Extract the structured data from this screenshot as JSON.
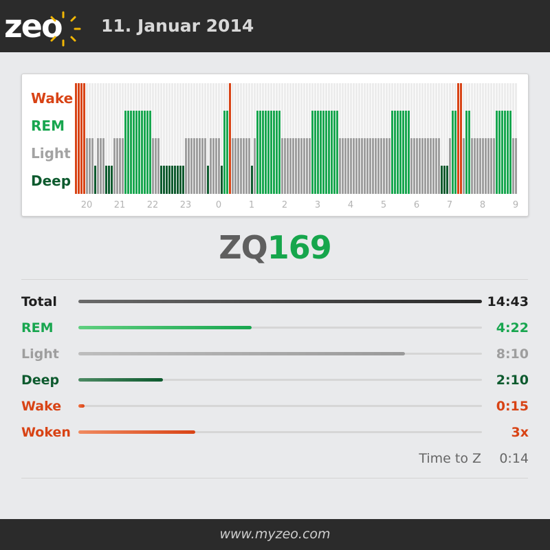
{
  "header": {
    "logo_text": "zeo",
    "date": "11. Januar 2014"
  },
  "colors": {
    "wake": "#d84315",
    "rem": "#18a64f",
    "light": "#9e9e9e",
    "deep": "#0d5a2e",
    "total": "#3c3c3c",
    "zq_value": "#16a64c"
  },
  "chart_data": {
    "type": "bar",
    "stage_labels": [
      "Wake",
      "REM",
      "Light",
      "Deep"
    ],
    "x_tick_labels": [
      "20",
      "21",
      "22",
      "23",
      "0",
      "1",
      "2",
      "3",
      "4",
      "5",
      "6",
      "7",
      "8",
      "9"
    ],
    "stages_sequence": "WWWWLLLDLLLDDDLLLLRRRRRRRRRRLLLDDDDDDDDDLLLLLLLLDLLLLDRRWLLLLLLLDLRRRRRRRRRLLLLLLLLLLLRRRRRRRRRRLLLLLLLLLLLLLLLLLLLRRRRRRRLLLLLLLLLLLDDDLRRWWLRRLLLLLLLLLRRRRRRLLLLLLLLLDDDL"
  },
  "zq": {
    "label": "ZQ",
    "value": "169"
  },
  "stats": [
    {
      "label": "Total",
      "value": "14:43",
      "fraction": 1.0
    },
    {
      "label": "REM",
      "value": "4:22",
      "fraction": 0.43
    },
    {
      "label": "Light",
      "value": "8:10",
      "fraction": 0.81
    },
    {
      "label": "Deep",
      "value": "2:10",
      "fraction": 0.21
    },
    {
      "label": "Wake",
      "value": "0:15",
      "fraction": 0.015
    },
    {
      "label": "Woken",
      "value": "3x",
      "fraction": 0.29
    }
  ],
  "time_to_z": {
    "label": "Time to Z",
    "value": "0:14"
  },
  "footer": {
    "url": "www.myzeo.com"
  }
}
